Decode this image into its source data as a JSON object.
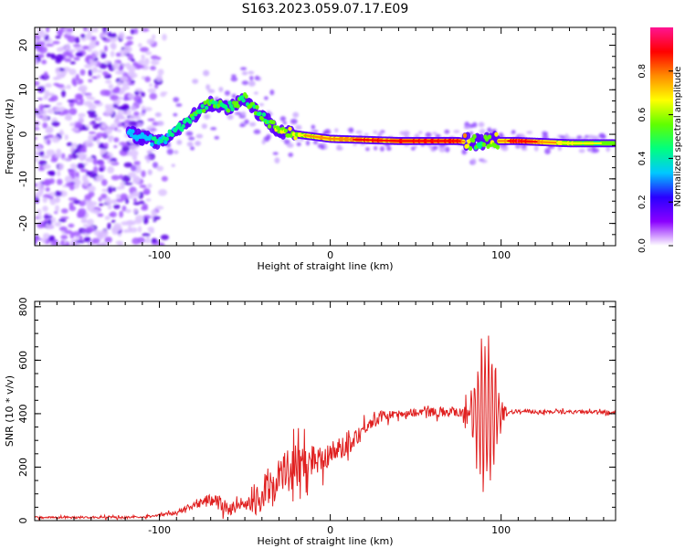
{
  "title": "S163.2023.059.07.17.E09",
  "chart_data": [
    {
      "type": "heatmap",
      "xlabel": "Height of straight line (km)",
      "ylabel": "Frequency (Hz)",
      "xlim": [
        -173,
        167
      ],
      "ylim": [
        -25,
        24
      ],
      "x_ticks": [
        -100,
        0,
        100
      ],
      "y_ticks": [
        -20,
        -10,
        0,
        10,
        20
      ],
      "colorbar": {
        "label": "Normalized spectral amplitude",
        "range": [
          0,
          1
        ],
        "ticks": [
          "0.0",
          "0.2",
          "0.4",
          "0.6",
          "0.8"
        ],
        "colormap": [
          "#ffffff",
          "#8a00ff",
          "#2a00ff",
          "#00c8ff",
          "#00ff7f",
          "#60ff00",
          "#ffff00",
          "#ff8c00",
          "#ff0000",
          "#ff1493"
        ]
      },
      "ridge_frequency": [
        {
          "x": -115,
          "f": 0,
          "a": 0.35
        },
        {
          "x": -100,
          "f": -2,
          "a": 0.4
        },
        {
          "x": -90,
          "f": 1,
          "a": 0.45
        },
        {
          "x": -80,
          "f": 4,
          "a": 0.5
        },
        {
          "x": -72,
          "f": 7,
          "a": 0.55
        },
        {
          "x": -60,
          "f": 6,
          "a": 0.5
        },
        {
          "x": -50,
          "f": 8,
          "a": 0.55
        },
        {
          "x": -40,
          "f": 4,
          "a": 0.55
        },
        {
          "x": -30,
          "f": 1,
          "a": 0.6
        },
        {
          "x": -20,
          "f": 0,
          "a": 0.65
        },
        {
          "x": 0,
          "f": -1,
          "a": 0.75
        },
        {
          "x": 40,
          "f": -1.5,
          "a": 0.85
        },
        {
          "x": 75,
          "f": -1.5,
          "a": 0.85
        },
        {
          "x": 85,
          "f": -2,
          "a": 0.5
        },
        {
          "x": 95,
          "f": -1.5,
          "a": 0.6
        },
        {
          "x": 110,
          "f": -1.5,
          "a": 0.9
        },
        {
          "x": 140,
          "f": -2,
          "a": 0.6
        },
        {
          "x": 165,
          "f": -2,
          "a": 0.55
        }
      ]
    },
    {
      "type": "line",
      "xlabel": "Height of straight line (km)",
      "ylabel": "SNR (10 * v/v)",
      "xlim": [
        -173,
        167
      ],
      "ylim": [
        0,
        820
      ],
      "x_ticks": [
        -100,
        0,
        100
      ],
      "y_ticks": [
        0,
        200,
        400,
        600,
        800
      ],
      "color": "#e02020",
      "baseline": [
        {
          "x": -173,
          "snr": 12
        },
        {
          "x": -110,
          "snr": 12
        },
        {
          "x": -90,
          "snr": 30
        },
        {
          "x": -70,
          "snr": 80
        },
        {
          "x": -60,
          "snr": 45
        },
        {
          "x": -45,
          "snr": 60
        },
        {
          "x": -35,
          "snr": 130
        },
        {
          "x": -25,
          "snr": 190
        },
        {
          "x": -10,
          "snr": 230
        },
        {
          "x": 0,
          "snr": 250
        },
        {
          "x": 10,
          "snr": 280
        },
        {
          "x": 20,
          "snr": 350
        },
        {
          "x": 30,
          "snr": 390
        },
        {
          "x": 50,
          "snr": 405
        },
        {
          "x": 80,
          "snr": 410
        },
        {
          "x": 90,
          "snr": 400
        },
        {
          "x": 110,
          "snr": 408
        },
        {
          "x": 167,
          "snr": 405
        }
      ],
      "noise": [
        {
          "x": -173,
          "amp": 5
        },
        {
          "x": -100,
          "amp": 5
        },
        {
          "x": -80,
          "amp": 15
        },
        {
          "x": -65,
          "amp": 40
        },
        {
          "x": -50,
          "amp": 20
        },
        {
          "x": -35,
          "amp": 110
        },
        {
          "x": -20,
          "amp": 100
        },
        {
          "x": 0,
          "amp": 60
        },
        {
          "x": 20,
          "amp": 35
        },
        {
          "x": 40,
          "amp": 18
        },
        {
          "x": 75,
          "amp": 25
        },
        {
          "x": 82,
          "amp": 120
        },
        {
          "x": 92,
          "amp": 380
        },
        {
          "x": 100,
          "amp": 60
        },
        {
          "x": 104,
          "amp": 10
        },
        {
          "x": 167,
          "amp": 8
        }
      ]
    }
  ]
}
